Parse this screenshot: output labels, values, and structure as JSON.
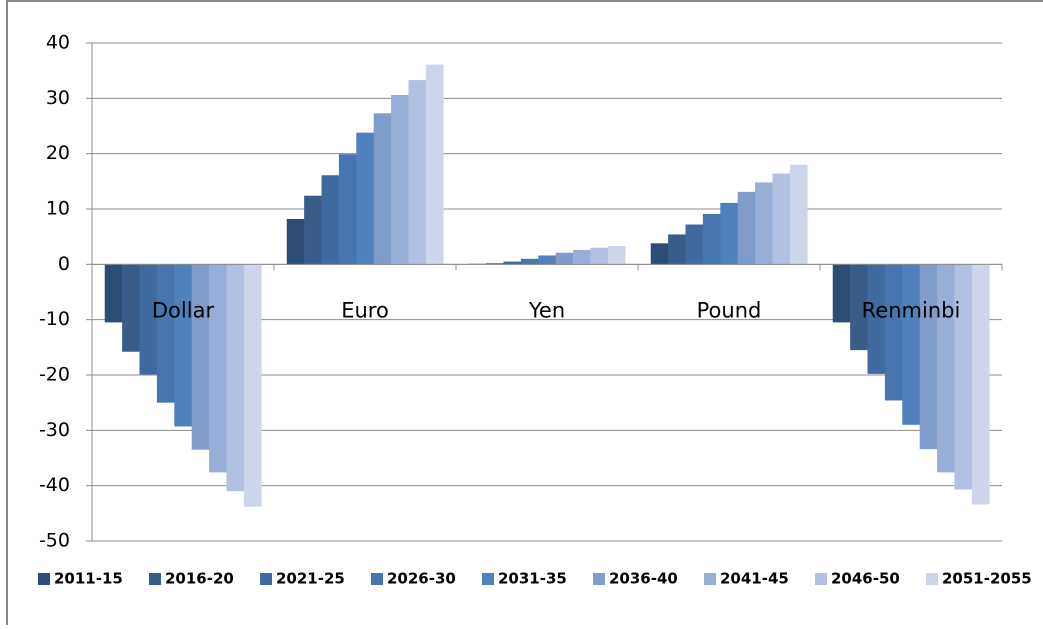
{
  "chart_data": {
    "type": "bar",
    "categories": [
      "Dollar",
      "Euro",
      "Yen",
      "Pound",
      "Renminbi"
    ],
    "series": [
      {
        "name": "2011-15",
        "color": "#2c4d75",
        "values": [
          -10.5,
          8.2,
          0.1,
          3.8,
          -10.5
        ]
      },
      {
        "name": "2016-20",
        "color": "#385d8a",
        "values": [
          -15.8,
          12.4,
          0.2,
          5.4,
          -15.5
        ]
      },
      {
        "name": "2021-25",
        "color": "#3f6aa0",
        "values": [
          -19.9,
          16.1,
          0.5,
          7.2,
          -19.8
        ]
      },
      {
        "name": "2026-30",
        "color": "#4675b0",
        "values": [
          -25,
          19.9,
          1.0,
          9.1,
          -24.6
        ]
      },
      {
        "name": "2031-35",
        "color": "#4f81bd",
        "values": [
          -29.3,
          23.8,
          1.6,
          11.1,
          -29
        ]
      },
      {
        "name": "2036-40",
        "color": "#7f9ccb",
        "values": [
          -33.5,
          27.3,
          2.1,
          13.1,
          -33.4
        ]
      },
      {
        "name": "2041-45",
        "color": "#98aed7",
        "values": [
          -37.6,
          30.6,
          2.6,
          14.8,
          -37.6
        ]
      },
      {
        "name": "2046-50",
        "color": "#b2c1e1",
        "values": [
          -41,
          33.3,
          3.0,
          16.4,
          -40.7
        ]
      },
      {
        "name": "2051-2055",
        "color": "#ccd5e9",
        "values": [
          -43.8,
          36.1,
          3.3,
          18.0,
          -43.4
        ]
      }
    ],
    "ylim": [
      -50,
      40
    ],
    "yticks": [
      -50,
      -40,
      -30,
      -20,
      -10,
      0,
      10,
      20,
      30,
      40
    ],
    "grid": true
  }
}
